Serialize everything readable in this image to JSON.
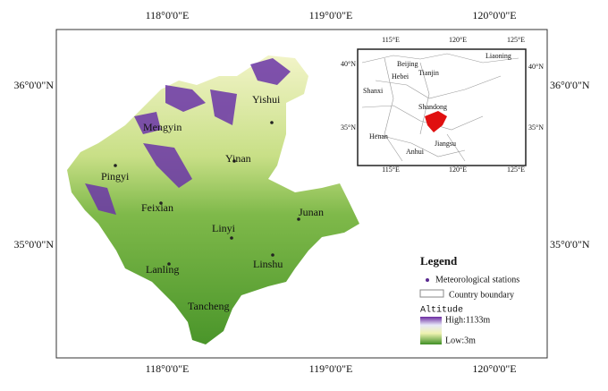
{
  "map": {
    "graticule": {
      "lon": [
        "118°0'0\"E",
        "119°0'0\"E",
        "120°0'0\"E"
      ],
      "lat": [
        "36°0'0\"N",
        "35°0'0\"N"
      ]
    },
    "stations": [
      "Yishui",
      "Mengyin",
      "Pingyi",
      "Yinan",
      "Feixian",
      "Linyi",
      "Junan",
      "Lanling",
      "Linshu",
      "Tancheng"
    ],
    "inset": {
      "lon": [
        "115°E",
        "120°E",
        "125°E"
      ],
      "lat": [
        "40°N",
        "35°N"
      ],
      "provinces": [
        "Liaoning",
        "Beijing",
        "Tianjin",
        "Hebei",
        "Shanxi",
        "Shandong",
        "Henan",
        "Jiangsu",
        "Anhui"
      ]
    },
    "legend": {
      "title": "Legend",
      "station": "Meteorological stations",
      "boundary": "Country boundary",
      "altitude_title": "Altitude",
      "high": "High:1133m",
      "low": "Low:3m"
    }
  }
}
